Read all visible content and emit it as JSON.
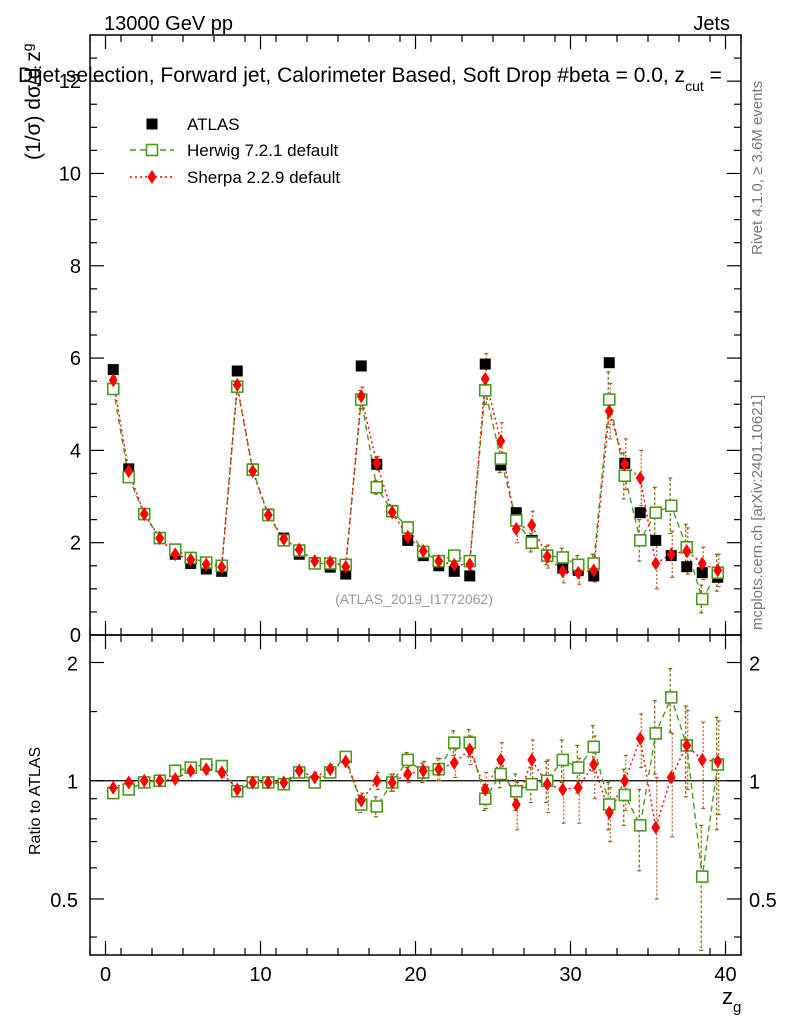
{
  "header": {
    "energy_label": "13000 GeV pp",
    "process_label": "Jets",
    "plot_title": "Dijet selection, Forward jet, Calorimeter Based, Soft Drop #beta = 0.0, z",
    "title_subscript": "cut",
    "title_tail": " =",
    "rivet_label": "Rivet 4.1.0, ≥ 3.6M events",
    "mcplots_label": "mcplots.cern.ch [arXiv:2401.10621]",
    "watermark": "(ATLAS_2019_I1772062)"
  },
  "colors": {
    "atlas": "#000000",
    "herwig": "#4b9a1e",
    "sherpa": "#ff0000",
    "herwig_err": "#7a6a10",
    "sherpa_err": "#b85a1a"
  },
  "chart_data": {
    "type": "scatter",
    "x_tick_labels": [
      "0",
      "10",
      "20",
      "30",
      "40"
    ],
    "x_ticks": [
      0,
      10,
      20,
      30,
      40
    ],
    "xlim": [
      -1,
      41
    ],
    "xlabel": "z",
    "xlabel_sub": "g",
    "main_panel": {
      "ylabel_prefix": "(1/σ) dσ/d z",
      "ylabel_sub": "g",
      "ylim": [
        0,
        13
      ],
      "y_ticks": [
        0,
        2,
        4,
        6,
        8,
        10,
        12
      ],
      "y_tick_labels": [
        "0",
        "2",
        "4",
        "6",
        "8",
        "10",
        "12"
      ],
      "legend": [
        {
          "name": "ATLAS",
          "marker": "filled-square"
        },
        {
          "name": "Herwig 7.2.1 default",
          "marker": "open-square-dashed"
        },
        {
          "name": "Sherpa 2.2.9 default",
          "marker": "diamond-dotted"
        }
      ],
      "x": [
        0.5,
        1.5,
        2.5,
        3.5,
        4.5,
        5.5,
        6.5,
        7.5,
        8.5,
        9.5,
        10.5,
        11.5,
        12.5,
        13.5,
        14.5,
        15.5,
        16.5,
        17.5,
        18.5,
        19.5,
        20.5,
        21.5,
        22.5,
        23.5,
        24.5,
        25.5,
        26.5,
        27.5,
        28.5,
        29.5,
        30.5,
        31.5,
        32.5,
        33.5,
        34.5,
        35.5,
        36.5,
        37.5,
        38.5,
        39.5
      ],
      "series": [
        {
          "name": "ATLAS",
          "values": [
            5.75,
            3.6,
            2.62,
            2.1,
            1.75,
            1.55,
            1.43,
            1.38,
            5.72,
            3.6,
            2.62,
            2.1,
            1.75,
            1.57,
            1.47,
            1.32,
            5.83,
            3.7,
            2.7,
            2.05,
            1.72,
            1.5,
            1.38,
            1.28,
            5.87,
            3.68,
            2.65,
            2.05,
            1.72,
            1.45,
            1.4,
            1.28,
            5.9,
            3.72,
            2.65,
            2.05,
            1.72,
            1.48,
            1.35,
            1.25
          ]
        },
        {
          "name": "Herwig 7.2.1 default",
          "values": [
            5.33,
            3.42,
            2.62,
            2.1,
            1.85,
            1.67,
            1.57,
            1.5,
            5.38,
            3.58,
            2.6,
            2.05,
            1.83,
            1.55,
            1.55,
            1.52,
            5.1,
            3.2,
            2.68,
            2.33,
            1.8,
            1.6,
            1.72,
            1.6,
            5.3,
            3.82,
            2.48,
            2.0,
            1.72,
            1.68,
            1.52,
            1.55,
            5.1,
            3.45,
            2.05,
            2.65,
            2.8,
            1.9,
            0.78,
            1.35
          ]
        },
        {
          "name": "Sherpa 2.2.9 default",
          "values": [
            5.52,
            3.55,
            2.62,
            2.1,
            1.75,
            1.63,
            1.53,
            1.47,
            5.42,
            3.55,
            2.6,
            2.08,
            1.85,
            1.6,
            1.58,
            1.48,
            5.17,
            3.72,
            2.66,
            2.13,
            1.82,
            1.6,
            1.52,
            1.53,
            5.55,
            4.2,
            2.3,
            2.38,
            1.7,
            1.38,
            1.35,
            1.4,
            4.85,
            3.7,
            3.4,
            1.55,
            1.75,
            1.82,
            1.55,
            1.4
          ]
        }
      ],
      "herwig_err": [
        0.08,
        0.06,
        0.05,
        0.04,
        0.04,
        0.04,
        0.04,
        0.04,
        0.08,
        0.06,
        0.05,
        0.04,
        0.04,
        0.04,
        0.04,
        0.05,
        0.2,
        0.15,
        0.12,
        0.1,
        0.1,
        0.1,
        0.12,
        0.12,
        0.3,
        0.3,
        0.25,
        0.2,
        0.2,
        0.2,
        0.2,
        0.2,
        0.6,
        0.5,
        0.45,
        0.55,
        0.6,
        0.5,
        0.3,
        0.4
      ],
      "sherpa_err": [
        0.08,
        0.06,
        0.05,
        0.04,
        0.04,
        0.04,
        0.04,
        0.04,
        0.08,
        0.06,
        0.05,
        0.04,
        0.04,
        0.04,
        0.04,
        0.05,
        0.2,
        0.15,
        0.12,
        0.1,
        0.1,
        0.1,
        0.12,
        0.12,
        0.55,
        0.4,
        0.3,
        0.3,
        0.25,
        0.25,
        0.25,
        0.25,
        0.6,
        0.55,
        0.6,
        0.55,
        0.5,
        0.5,
        0.35,
        0.35
      ]
    },
    "ratio_panel": {
      "ylabel": "Ratio to ATLAS",
      "ylim_log": [
        0.36,
        2.35
      ],
      "y_ticks": [
        0.5,
        1,
        2
      ],
      "y_tick_labels": [
        "0.5",
        "1",
        "2"
      ],
      "series": [
        {
          "name": "Herwig 7.2.1 default",
          "values": [
            0.93,
            0.95,
            0.99,
            1.0,
            1.06,
            1.08,
            1.1,
            1.09,
            0.94,
            0.99,
            0.99,
            0.98,
            1.05,
            0.99,
            1.05,
            1.15,
            0.87,
            0.86,
            0.99,
            1.13,
            1.05,
            1.07,
            1.25,
            1.25,
            0.9,
            1.04,
            0.94,
            0.98,
            1.0,
            1.13,
            1.08,
            1.22,
            0.87,
            0.92,
            0.77,
            1.32,
            1.63,
            1.23,
            0.57,
            1.1
          ]
        },
        {
          "name": "Sherpa 2.2.9 default",
          "values": [
            0.96,
            0.99,
            1.0,
            1.0,
            1.01,
            1.06,
            1.07,
            1.05,
            0.95,
            0.99,
            0.99,
            0.99,
            1.06,
            1.02,
            1.07,
            1.12,
            0.89,
            1.0,
            0.99,
            1.04,
            1.06,
            1.07,
            1.11,
            1.2,
            0.95,
            1.13,
            0.87,
            1.13,
            0.98,
            0.95,
            0.96,
            1.1,
            0.83,
            1.0,
            1.28,
            0.76,
            1.02,
            1.23,
            1.13,
            1.12
          ]
        }
      ],
      "herwig_err": [
        0.02,
        0.02,
        0.02,
        0.02,
        0.02,
        0.02,
        0.03,
        0.03,
        0.02,
        0.02,
        0.02,
        0.02,
        0.02,
        0.03,
        0.03,
        0.03,
        0.04,
        0.05,
        0.05,
        0.05,
        0.06,
        0.07,
        0.09,
        0.1,
        0.06,
        0.08,
        0.1,
        0.1,
        0.12,
        0.14,
        0.15,
        0.16,
        0.12,
        0.15,
        0.18,
        0.28,
        0.3,
        0.32,
        0.2,
        0.35
      ],
      "sherpa_err": [
        0.02,
        0.02,
        0.02,
        0.02,
        0.02,
        0.02,
        0.03,
        0.03,
        0.02,
        0.02,
        0.02,
        0.02,
        0.02,
        0.03,
        0.03,
        0.03,
        0.04,
        0.05,
        0.05,
        0.05,
        0.06,
        0.07,
        0.09,
        0.1,
        0.1,
        0.12,
        0.12,
        0.14,
        0.15,
        0.17,
        0.18,
        0.2,
        0.13,
        0.16,
        0.2,
        0.26,
        0.3,
        0.28,
        0.28,
        0.3
      ]
    }
  }
}
